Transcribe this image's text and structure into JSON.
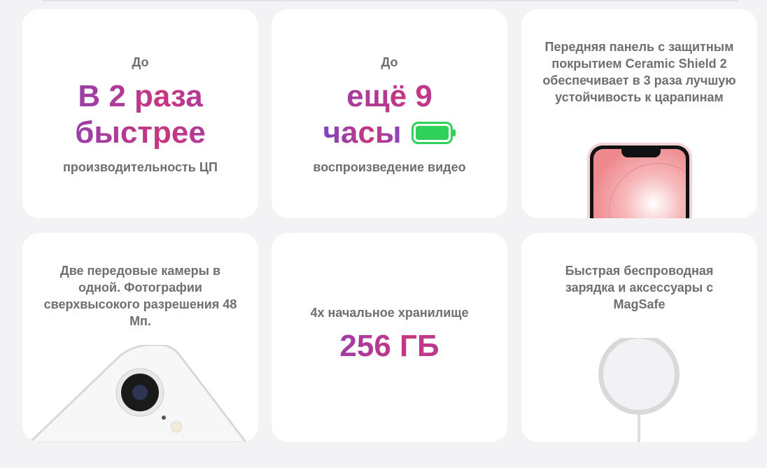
{
  "cards": [
    {
      "pre": "До",
      "big1": "В 2 раза",
      "big2": "быстрее",
      "sub": "производительность ЦП"
    },
    {
      "pre": "До",
      "big1": "ещё 9",
      "big2": "часы",
      "sub": "воспроизведение видео",
      "icon": "battery-full-icon",
      "accent": "#30d158"
    },
    {
      "text": "Передняя панель с защитным покрытием Ceramic Shield 2 обеспечивает в 3 раза лучшую устойчивость к царапинам"
    },
    {
      "text": "Две передовые камеры в одной. Фотографии сверхвысокого разрешения 48 Мп."
    },
    {
      "pre": "4x начальное хранилище",
      "big1": "256 ГБ"
    },
    {
      "text": "Быстрая беспроводная зарядка и аксессуары с MagSafe"
    }
  ]
}
